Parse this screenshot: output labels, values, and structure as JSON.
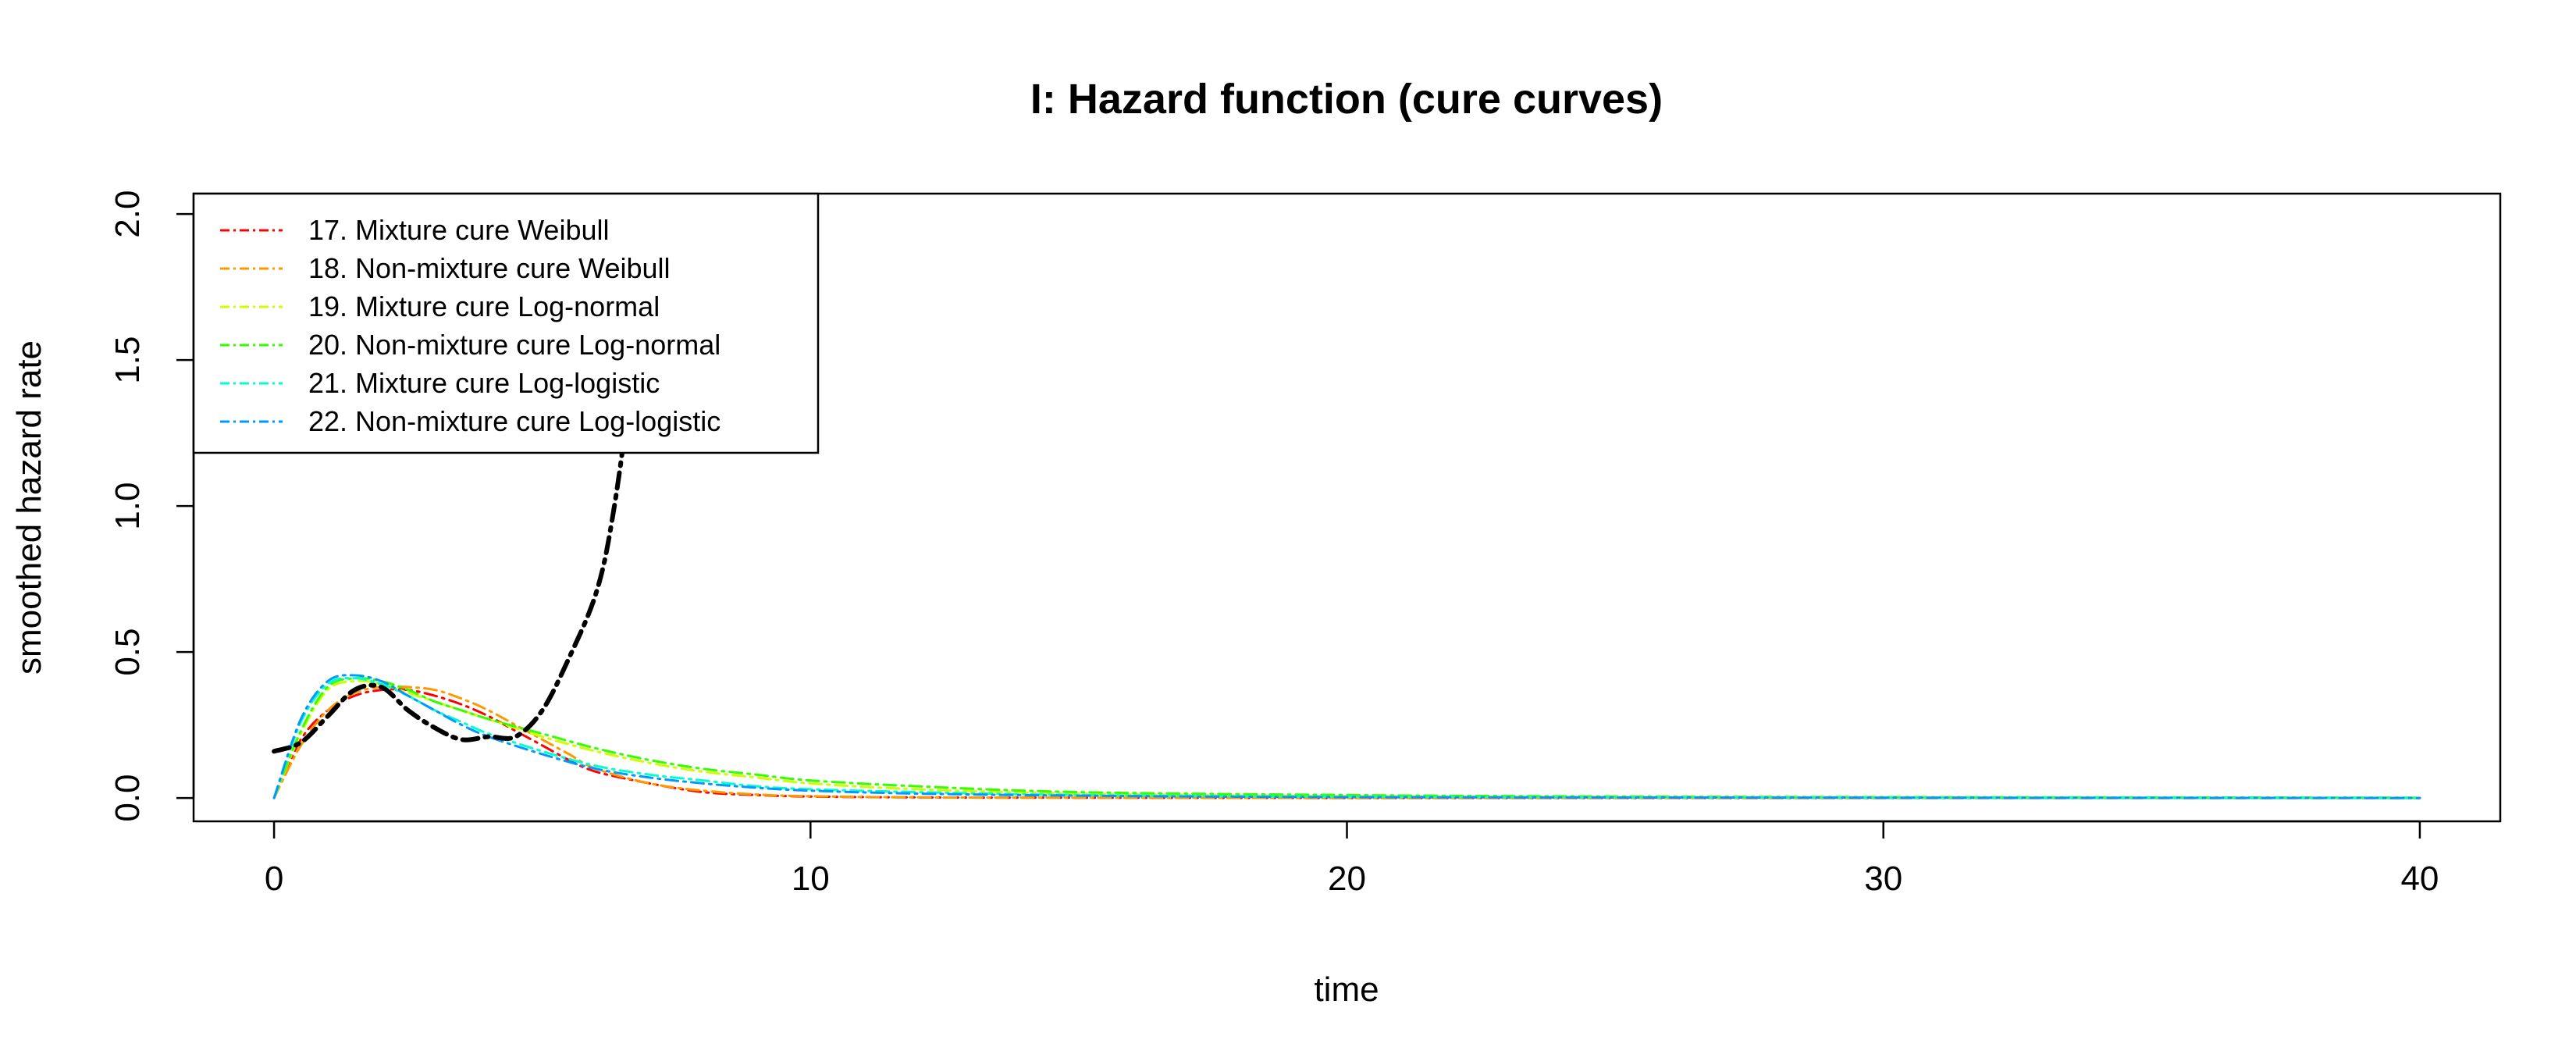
{
  "chart_data": {
    "type": "line",
    "title": "I: Hazard function (cure curves)",
    "xlabel": "time",
    "ylabel": "smoothed hazard rate",
    "xlim": [
      -1.5,
      41.5
    ],
    "ylim": [
      -0.08,
      2.07
    ],
    "x_ticks": [
      0,
      10,
      20,
      30,
      40
    ],
    "x_tick_labels": [
      "0",
      "10",
      "20",
      "30",
      "40"
    ],
    "y_ticks": [
      0.0,
      0.5,
      1.0,
      1.5,
      2.0
    ],
    "y_tick_labels": [
      "0.0",
      "0.5",
      "1.0",
      "1.5",
      "2.0"
    ],
    "grid": false,
    "legend_position": "top-left",
    "observed": {
      "color": "#000000",
      "x": [
        0,
        0.5,
        1.0,
        1.5,
        2.0,
        2.5,
        3.0,
        3.5,
        4.0,
        4.5,
        5.0,
        5.5,
        6.0,
        6.3,
        6.6,
        6.8
      ],
      "y": [
        0.16,
        0.19,
        0.28,
        0.37,
        0.38,
        0.3,
        0.24,
        0.2,
        0.21,
        0.21,
        0.3,
        0.48,
        0.7,
        0.95,
        1.35,
        1.8
      ]
    },
    "series": [
      {
        "name": "17. Mixture cure Weibull",
        "color": "#FF0000",
        "x": [
          0,
          0.5,
          1.0,
          1.5,
          2.0,
          2.5,
          3.0,
          3.5,
          4.0,
          4.5,
          5.0,
          5.5,
          6.0,
          7.0,
          8.0,
          9.0,
          10.0,
          12.0,
          15.0,
          20.0,
          30.0,
          40.0
        ],
        "y": [
          0.0,
          0.2,
          0.3,
          0.35,
          0.37,
          0.37,
          0.35,
          0.32,
          0.28,
          0.23,
          0.18,
          0.13,
          0.09,
          0.05,
          0.02,
          0.01,
          0.005,
          0.002,
          0.001,
          0.0,
          0.0,
          0.0
        ]
      },
      {
        "name": "18. Non-mixture cure Weibull",
        "color": "#FF9900",
        "x": [
          0,
          0.5,
          1.0,
          1.5,
          2.0,
          2.5,
          3.0,
          3.5,
          4.0,
          4.5,
          5.0,
          5.5,
          6.0,
          7.0,
          8.0,
          9.0,
          10.0,
          12.0,
          15.0,
          20.0,
          30.0,
          40.0
        ],
        "y": [
          0.0,
          0.18,
          0.3,
          0.36,
          0.38,
          0.38,
          0.37,
          0.34,
          0.3,
          0.25,
          0.2,
          0.15,
          0.1,
          0.05,
          0.025,
          0.012,
          0.006,
          0.002,
          0.001,
          0.0,
          0.0,
          0.0
        ]
      },
      {
        "name": "19. Mixture cure Log-normal",
        "color": "#CCFF00",
        "x": [
          0,
          0.5,
          1.0,
          1.5,
          2.0,
          2.5,
          3.0,
          3.5,
          4.0,
          5.0,
          6.0,
          7.0,
          8.0,
          9.0,
          10.0,
          12.0,
          15.0,
          20.0,
          25.0,
          30.0,
          40.0
        ],
        "y": [
          0.0,
          0.22,
          0.37,
          0.4,
          0.39,
          0.36,
          0.33,
          0.3,
          0.27,
          0.21,
          0.16,
          0.12,
          0.09,
          0.07,
          0.05,
          0.03,
          0.015,
          0.006,
          0.003,
          0.002,
          0.0
        ]
      },
      {
        "name": "20. Non-mixture cure Log-normal",
        "color": "#33FF00",
        "x": [
          0,
          0.5,
          1.0,
          1.5,
          2.0,
          2.5,
          3.0,
          3.5,
          4.0,
          5.0,
          6.0,
          7.0,
          8.0,
          9.0,
          10.0,
          12.0,
          15.0,
          20.0,
          25.0,
          30.0,
          40.0
        ],
        "y": [
          0.0,
          0.23,
          0.38,
          0.41,
          0.4,
          0.37,
          0.33,
          0.3,
          0.27,
          0.22,
          0.17,
          0.13,
          0.1,
          0.08,
          0.06,
          0.04,
          0.02,
          0.01,
          0.005,
          0.003,
          0.001
        ]
      },
      {
        "name": "21. Mixture cure Log-logistic",
        "color": "#00FFCC",
        "x": [
          0,
          0.5,
          1.0,
          1.5,
          2.0,
          2.5,
          3.0,
          3.5,
          4.0,
          5.0,
          6.0,
          7.0,
          8.0,
          9.0,
          10.0,
          12.0,
          15.0,
          20.0,
          30.0,
          40.0
        ],
        "y": [
          0.0,
          0.26,
          0.39,
          0.41,
          0.39,
          0.35,
          0.3,
          0.26,
          0.22,
          0.16,
          0.11,
          0.08,
          0.06,
          0.04,
          0.03,
          0.02,
          0.01,
          0.004,
          0.001,
          0.0
        ]
      },
      {
        "name": "22. Non-mixture cure Log-logistic",
        "color": "#0099FF",
        "x": [
          0,
          0.5,
          1.0,
          1.5,
          2.0,
          2.5,
          3.0,
          3.5,
          4.0,
          5.0,
          6.0,
          7.0,
          8.0,
          9.0,
          10.0,
          12.0,
          15.0,
          20.0,
          30.0,
          40.0
        ],
        "y": [
          0.0,
          0.27,
          0.4,
          0.42,
          0.4,
          0.35,
          0.3,
          0.25,
          0.21,
          0.15,
          0.1,
          0.07,
          0.05,
          0.035,
          0.025,
          0.015,
          0.008,
          0.003,
          0.001,
          0.0
        ]
      }
    ]
  }
}
